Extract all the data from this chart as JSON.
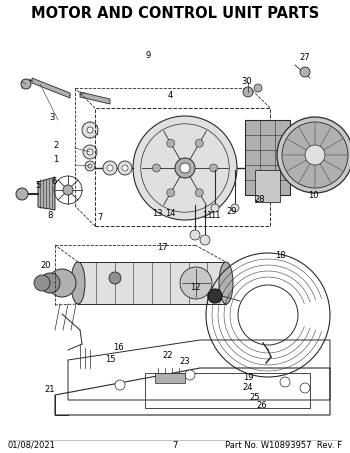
{
  "title": "MOTOR AND CONTROL UNIT PARTS",
  "title_fontsize": 10.5,
  "title_fontweight": "bold",
  "background_color": "#ffffff",
  "footer_left": "01/08/2021",
  "footer_center": "7",
  "footer_right": "Part No. W10893957  Rev. F",
  "footer_fontsize": 6.0,
  "label_fontsize": 6.0,
  "dc": "#2a2a2a",
  "lc": "#3a3a3a",
  "gray1": "#c8c8c8",
  "gray2": "#b0b0b0",
  "gray3": "#e0e0e0",
  "gray4": "#909090",
  "fig_w": 3.5,
  "fig_h": 4.53,
  "dpi": 100
}
